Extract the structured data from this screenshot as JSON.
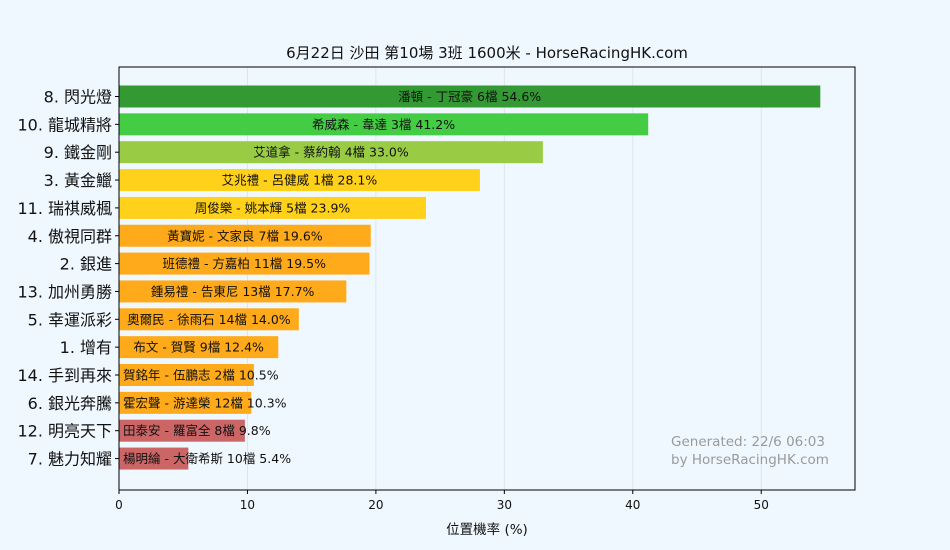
{
  "chart_data": {
    "type": "bar",
    "orientation": "horizontal",
    "title": "6月22日  沙田  第10場  3班  1600米 - HorseRacingHK.com",
    "xlabel": "位置機率 (%)",
    "ylabel": "",
    "xlim": [
      0,
      57.3
    ],
    "xticks": [
      0,
      10,
      20,
      30,
      40,
      50
    ],
    "grid": "vertical",
    "categories": [
      "8. 閃光燈",
      "10. 龍城精將",
      "9. 鐵金剛",
      "3. 黃金鱲",
      "11. 瑞祺威楓",
      "4. 傲視同群",
      "2. 銀進",
      "13. 加州勇勝",
      "5. 幸運派彩",
      "1. 增有",
      "14. 手到再來",
      "6. 銀光奔騰",
      "12. 明亮天下",
      "7. 魅力知耀"
    ],
    "values": [
      54.6,
      41.2,
      33.0,
      28.1,
      23.9,
      19.6,
      19.5,
      17.7,
      14.0,
      12.4,
      10.5,
      10.3,
      9.8,
      5.4
    ],
    "bar_labels": [
      "潘頓 - 丁冠豪 6檔  54.6%",
      "希威森 - 韋達 3檔  41.2%",
      "艾道拿 - 蔡約翰 4檔  33.0%",
      "艾兆禮 - 呂健威 1檔  28.1%",
      "周俊樂 - 姚本輝 5檔  23.9%",
      "黃寶妮 - 文家良 7檔  19.6%",
      "班德禮 - 方嘉柏 11檔  19.5%",
      "鍾易禮 - 告東尼 13檔  17.7%",
      "奧爾民 - 徐雨石 14檔  14.0%",
      "布文 - 賀賢 9檔  12.4%",
      "賀銘年 - 伍鵬志 2檔  10.5%",
      "霍宏聲 - 游達榮 12檔  10.3%",
      "田泰安 - 羅富全 8檔  9.8%",
      "楊明綸 - 大衛希斯 10檔  5.4%"
    ],
    "colors": [
      "#339933",
      "#44cc44",
      "#99cc44",
      "#ffd11a",
      "#ffd11a",
      "#ffaa1a",
      "#ffaa1a",
      "#ffaa1a",
      "#ffaa1a",
      "#ffaa1a",
      "#ffaa1a",
      "#ffaa1a",
      "#cc6666",
      "#cc6666"
    ]
  },
  "watermark": {
    "line1": "Generated: 22/6 06:03",
    "line2": "by HorseRacingHK.com"
  },
  "style": {
    "background": "#f0f8ff",
    "plot_background": "#f0f8ff",
    "grid_color": "#dde4ec"
  }
}
